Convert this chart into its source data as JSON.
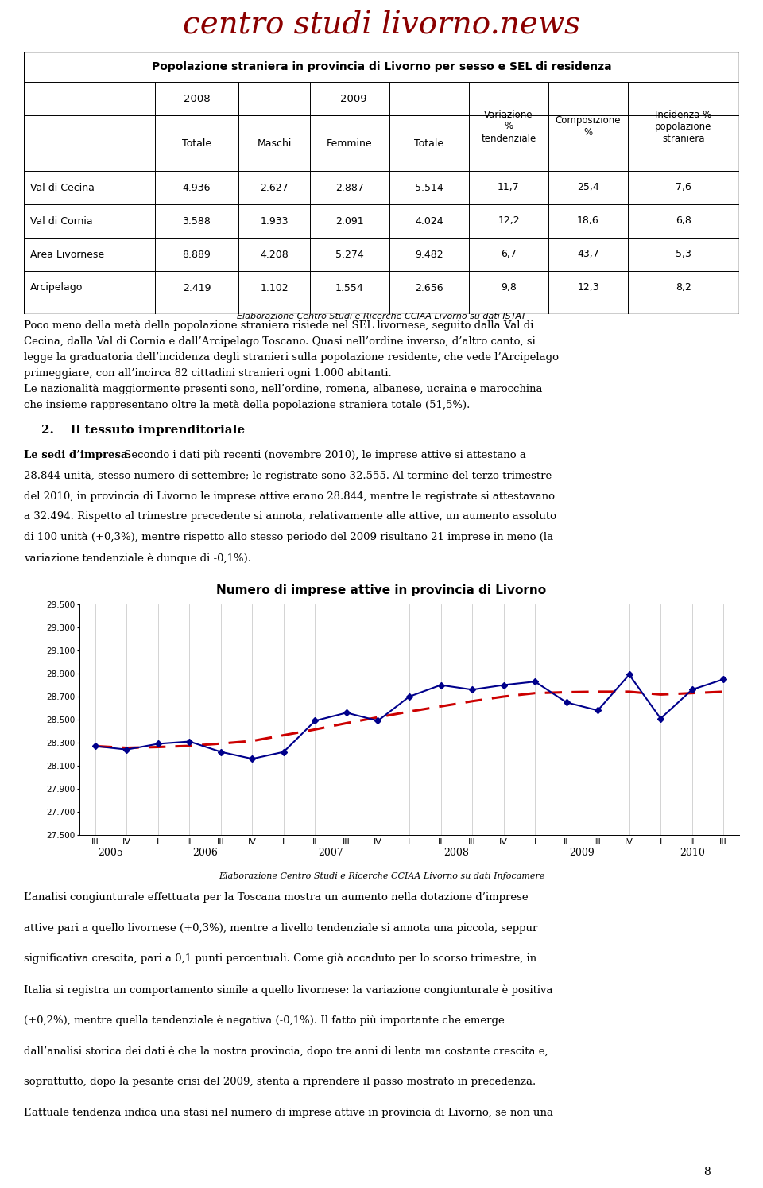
{
  "logo_text": "centro studi livorno.news",
  "table_title": "Popolazione straniera in provincia di Livorno per sesso e SEL di residenza",
  "table_rows": [
    [
      "Val di Cecina",
      "4.936",
      "2.627",
      "2.887",
      "5.514",
      "11,7",
      "25,4",
      "7,6"
    ],
    [
      "Val di Cornia",
      "3.588",
      "1.933",
      "2.091",
      "4.024",
      "12,2",
      "18,6",
      "6,8"
    ],
    [
      "Area Livornese",
      "8.889",
      "4.208",
      "5.274",
      "9.482",
      "6,7",
      "43,7",
      "5,3"
    ],
    [
      "Arcipelago",
      "2.419",
      "1.102",
      "1.554",
      "2.656",
      "9,8",
      "12,3",
      "8,2"
    ]
  ],
  "table_footer": "Elaborazione Centro Studi e Ricerche CCIAA Livorno su dati ISTAT",
  "chart_title": "Numero di imprese attive in provincia di Livorno",
  "chart_footer": "Elaborazione Centro Studi e Ricerche CCIAA Livorno su dati Infocamere",
  "page_number": "8",
  "chart_x_quarters": [
    "III",
    "IV",
    "I",
    "II",
    "III",
    "IV",
    "I",
    "II",
    "III",
    "IV",
    "I",
    "II",
    "III",
    "IV",
    "I",
    "II",
    "III",
    "IV",
    "I",
    "II",
    "III"
  ],
  "chart_year_groups": [
    [
      0,
      1,
      "2005"
    ],
    [
      2,
      5,
      "2006"
    ],
    [
      6,
      9,
      "2007"
    ],
    [
      10,
      13,
      "2008"
    ],
    [
      14,
      17,
      "2009"
    ],
    [
      18,
      20,
      "2010"
    ]
  ],
  "chart_solid_values": [
    28270,
    28240,
    28290,
    28310,
    28220,
    28160,
    28220,
    28490,
    28560,
    28490,
    28700,
    28800,
    28760,
    28800,
    28830,
    28650,
    28580,
    28890,
    28510,
    28760,
    28850
  ],
  "chart_dashed_values": [
    28270,
    28255,
    28262,
    28272,
    28292,
    28315,
    28365,
    28415,
    28470,
    28520,
    28570,
    28615,
    28660,
    28700,
    28730,
    28738,
    28742,
    28742,
    28718,
    28730,
    28742
  ],
  "solid_color": "#00008B",
  "dashed_color": "#CC0000",
  "logo_color": "#8B0000",
  "bg_color": "#ffffff",
  "para1_lines": [
    "Poco meno della metà della popolazione straniera risiede nel SEL livornese, seguito dalla Val di",
    "Cecina, dalla Val di Cornia e dall’Arcipelago Toscano. Quasi nell’ordine inverso, d’altro canto, si",
    "legge la graduatoria dell’incidenza degli stranieri sulla popolazione residente, che vede l’Arcipelago",
    "primeggiare, con all’incirca 82 cittadini stranieri ogni 1.000 abitanti.",
    "Le nazionalità maggiormente presenti sono, nell’ordine, romena, albanese, ucraina e marocchina",
    "che insieme rappresentano oltre la metà della popolazione straniera totale (51,5%)."
  ],
  "section_heading": "2.  Il tessuto imprenditoriale",
  "para2_bold": "Le sedi d’impresa.",
  "para2_rest": " Secondo i dati più recenti (novembre 2010), le imprese attive si attestano a",
  "para2_lines": [
    "28.844 unità, stesso numero di settembre; le registrate sono 32.555. Al termine del terzo trimestre",
    "del 2010, in provincia di Livorno le imprese attive erano 28.844, mentre le registrate si attestavano",
    "a 32.494. Rispetto al trimestre precedente si annota, relativamente alle attive, un aumento assoluto",
    "di 100 unità (+0,3%), mentre rispetto allo stesso periodo del 2009 risultano 21 imprese in meno (la",
    "variazione tendenziale è dunque di -0,1%)."
  ],
  "para3_lines": [
    "L’analisi congiunturale effettuata per la Toscana mostra un aumento nella dotazione d’imprese",
    "attive pari a quello livornese (+0,3%), mentre a livello tendenziale si annota una piccola, seppur",
    "significativa crescita, pari a 0,1 punti percentuali. Come già accaduto per lo scorso trimestre, in",
    "Italia si registra un comportamento simile a quello livornese: la variazione congiunturale è positiva",
    "(+0,2%), mentre quella tendenziale è negativa (-0,1%). Il fatto più importante che emerge",
    "dall’analisi storica dei dati è che la nostra provincia, dopo tre anni di lenta ma costante crescita e,",
    "soprattutto, dopo la pesante crisi del 2009, stenta a riprendere il passo mostrato in precedenza.",
    "L’attuale tendenza indica una stasi nel numero di imprese attive in provincia di Livorno, se non una"
  ]
}
